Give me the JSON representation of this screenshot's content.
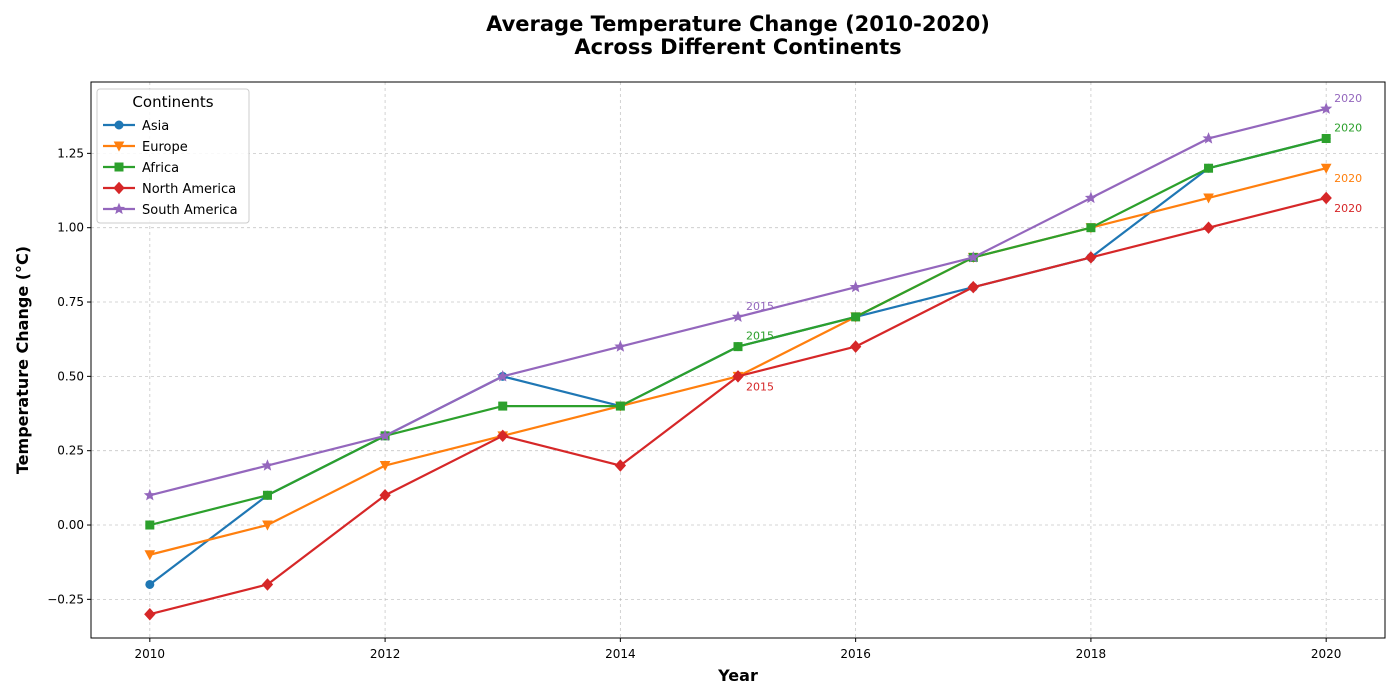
{
  "chart_data": {
    "type": "line",
    "title": [
      "Average Temperature Change (2010-2020)",
      "Across Different Continents"
    ],
    "xlabel": "Year",
    "ylabel": "Temperature Change (°C)",
    "x": [
      2010,
      2011,
      2012,
      2013,
      2014,
      2015,
      2016,
      2017,
      2018,
      2019,
      2020
    ],
    "xlim": [
      2009.5,
      2020.5
    ],
    "ylim": [
      -0.38,
      1.49
    ],
    "xticks": [
      2010,
      2012,
      2014,
      2016,
      2018,
      2020
    ],
    "yticks": [
      -0.25,
      0.0,
      0.25,
      0.5,
      0.75,
      1.0,
      1.25
    ],
    "ytick_labels": [
      "−0.25",
      "0.00",
      "0.25",
      "0.50",
      "0.75",
      "1.00",
      "1.25"
    ],
    "grid": true,
    "legend": {
      "title": "Continents",
      "placement": "top-left"
    },
    "series": [
      {
        "name": "Asia",
        "color": "#1f77b4",
        "marker": "circle",
        "values": [
          -0.2,
          0.1,
          0.3,
          0.5,
          0.4,
          0.6,
          0.7,
          0.8,
          0.9,
          1.2,
          1.3
        ]
      },
      {
        "name": "Europe",
        "color": "#ff7f0e",
        "marker": "triangle-down",
        "values": [
          -0.1,
          0.0,
          0.2,
          0.3,
          0.4,
          0.5,
          0.7,
          0.9,
          1.0,
          1.1,
          1.2
        ]
      },
      {
        "name": "Africa",
        "color": "#2ca02c",
        "marker": "square",
        "values": [
          0.0,
          0.1,
          0.3,
          0.4,
          0.4,
          0.6,
          0.7,
          0.9,
          1.0,
          1.2,
          1.3
        ]
      },
      {
        "name": "North America",
        "color": "#d62728",
        "marker": "diamond",
        "values": [
          -0.3,
          -0.2,
          0.1,
          0.3,
          0.2,
          0.5,
          0.6,
          0.8,
          0.9,
          1.0,
          1.1
        ]
      },
      {
        "name": "South America",
        "color": "#9467bd",
        "marker": "star",
        "values": [
          0.1,
          0.2,
          0.3,
          0.5,
          0.6,
          0.7,
          0.8,
          0.9,
          1.1,
          1.3,
          1.4
        ]
      }
    ],
    "annotations": [
      {
        "text": "2015",
        "x": 2015,
        "series": "South America"
      },
      {
        "text": "2015",
        "x": 2015,
        "series": "Africa"
      },
      {
        "text": "2015",
        "x": 2015,
        "series": "North America"
      },
      {
        "text": "2020",
        "x": 2020,
        "series": "South America"
      },
      {
        "text": "2020",
        "x": 2020,
        "series": "Africa"
      },
      {
        "text": "2020",
        "x": 2020,
        "series": "Europe"
      },
      {
        "text": "2020",
        "x": 2020,
        "series": "North America"
      }
    ]
  }
}
